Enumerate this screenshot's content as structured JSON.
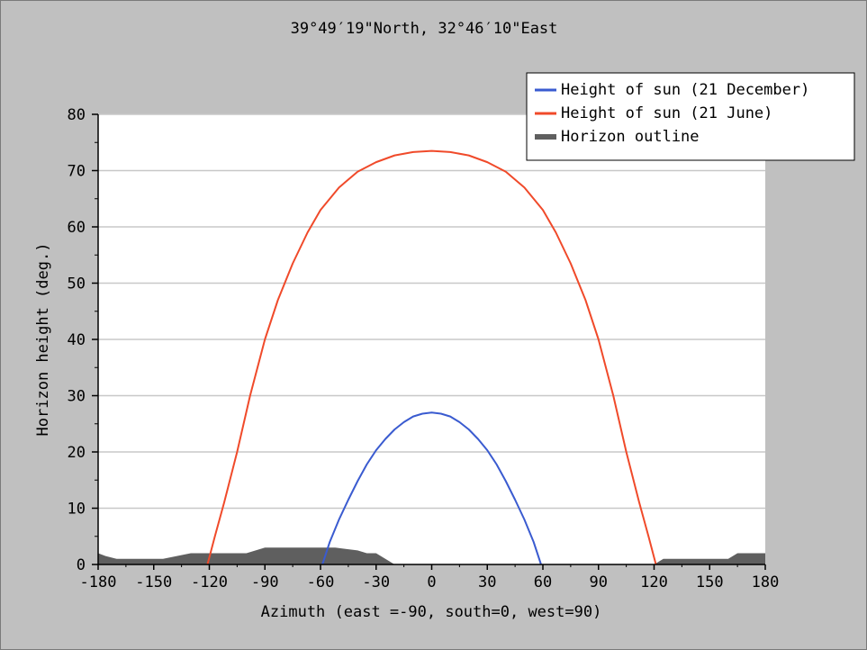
{
  "chart_data": {
    "type": "line",
    "title": "39°49′19\"North, 32°46′10\"East",
    "xlabel": "Azimuth (east =-90, south=0, west=90)",
    "ylabel": "Horizon height (deg.)",
    "xlim": [
      -180,
      180
    ],
    "ylim": [
      0,
      80
    ],
    "xticks": [
      -180,
      -150,
      -120,
      -90,
      -60,
      -30,
      0,
      30,
      60,
      90,
      120,
      150,
      180
    ],
    "yticks": [
      0,
      10,
      20,
      30,
      40,
      50,
      60,
      70,
      80
    ],
    "grid": "horizontal",
    "legend_position": "top-right",
    "series": [
      {
        "name": "Height of sun (21 December)",
        "color": "#3a5bd0",
        "x": [
          -59,
          -55,
          -50,
          -45,
          -40,
          -35,
          -30,
          -25,
          -20,
          -15,
          -10,
          -5,
          0,
          5,
          10,
          15,
          20,
          25,
          30,
          35,
          40,
          45,
          50,
          55,
          59
        ],
        "y": [
          0,
          4,
          8,
          11.5,
          14.8,
          17.8,
          20.3,
          22.3,
          24,
          25.3,
          26.3,
          26.8,
          27,
          26.8,
          26.3,
          25.3,
          24,
          22.3,
          20.3,
          17.8,
          14.8,
          11.5,
          8,
          4,
          0
        ]
      },
      {
        "name": "Height of sun (21 June)",
        "color": "#f04a2a",
        "x": [
          -121,
          -117,
          -112,
          -105,
          -98,
          -90,
          -83,
          -75,
          -67,
          -60,
          -50,
          -40,
          -30,
          -20,
          -10,
          0,
          10,
          20,
          30,
          40,
          50,
          60,
          67,
          75,
          83,
          90,
          98,
          105,
          112,
          117,
          121
        ],
        "y": [
          0,
          5,
          11,
          20,
          30,
          40,
          47,
          53.5,
          59,
          63,
          67,
          69.8,
          71.5,
          72.7,
          73.3,
          73.5,
          73.3,
          72.7,
          71.5,
          69.8,
          67,
          63,
          59,
          53.5,
          47,
          40,
          30,
          20,
          11,
          5,
          0
        ]
      }
    ],
    "horizon": {
      "name": "Horizon outline",
      "color": "#5f5f5f",
      "x": [
        -180,
        -176,
        -170,
        -150,
        -145,
        -130,
        -120,
        -100,
        -90,
        -80,
        -60,
        -52,
        -40,
        -35,
        -30,
        -25,
        -20,
        0,
        60,
        120,
        125,
        140,
        155,
        160,
        165,
        175,
        180
      ],
      "y": [
        2,
        1.5,
        1,
        1,
        1,
        2,
        2,
        2,
        3,
        3,
        3,
        3,
        2.5,
        2,
        2,
        1,
        0,
        0,
        0,
        0,
        1,
        1,
        1,
        1,
        2,
        2,
        2
      ]
    }
  }
}
